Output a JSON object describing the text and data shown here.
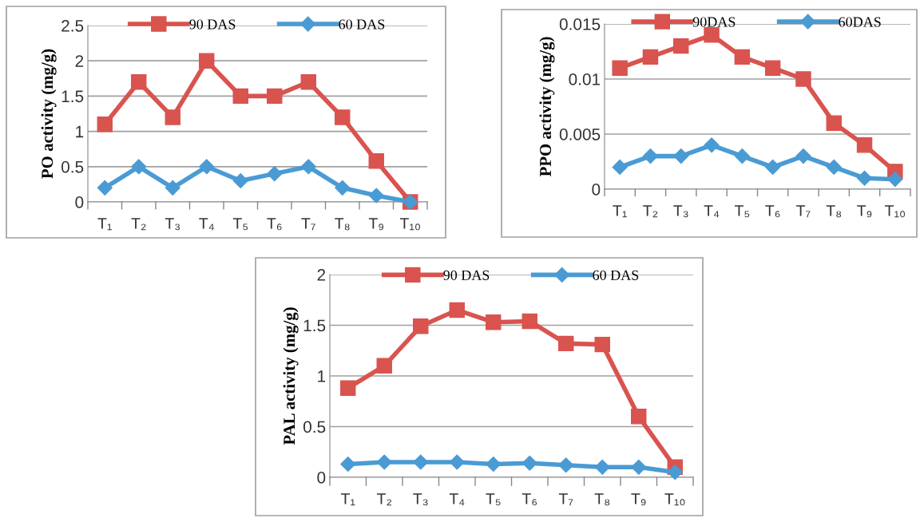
{
  "chart_data": [
    {
      "type": "line",
      "ylabel": "PO activity (mg/g)",
      "categories": [
        "T₁",
        "T₂",
        "T₃",
        "T₄",
        "T₅",
        "T₆",
        "T₇",
        "T₈",
        "T₉",
        "T₁₀"
      ],
      "series": [
        {
          "name": "90 DAS",
          "color": "#d9534f",
          "marker": "square",
          "values": [
            1.1,
            1.7,
            1.2,
            2.0,
            1.5,
            1.5,
            1.7,
            1.2,
            0.58,
            0.0
          ]
        },
        {
          "name": "60 DAS",
          "color": "#4a9bd4",
          "marker": "diamond",
          "values": [
            0.2,
            0.5,
            0.2,
            0.5,
            0.3,
            0.4,
            0.5,
            0.2,
            0.09,
            0.0
          ]
        }
      ],
      "ylim": [
        0,
        2.5
      ],
      "yticks": [
        0,
        0.5,
        1,
        1.5,
        2,
        2.5
      ],
      "grid": "y",
      "legend": "top"
    },
    {
      "type": "line",
      "ylabel": "PPO activity (mg/g)",
      "categories": [
        "T₁",
        "T₂",
        "T₃",
        "T₄",
        "T₅",
        "T₆",
        "T₇",
        "T₈",
        "T₉",
        "T₁₀"
      ],
      "series": [
        {
          "name": "90DAS",
          "color": "#d9534f",
          "marker": "square",
          "values": [
            0.011,
            0.012,
            0.013,
            0.014,
            0.012,
            0.011,
            0.01,
            0.006,
            0.004,
            0.0016
          ]
        },
        {
          "name": "60DAS",
          "color": "#4a9bd4",
          "marker": "diamond",
          "values": [
            0.002,
            0.003,
            0.003,
            0.004,
            0.003,
            0.002,
            0.003,
            0.002,
            0.001,
            0.0009
          ]
        }
      ],
      "ylim": [
        0,
        0.015
      ],
      "yticks": [
        0,
        0.005,
        0.01,
        0.015
      ],
      "grid": "y",
      "legend": "top"
    },
    {
      "type": "line",
      "ylabel": "PAL activity (mg/g)",
      "categories": [
        "T₁",
        "T₂",
        "T₃",
        "T₄",
        "T₅",
        "T₆",
        "T₇",
        "T₈",
        "T₉",
        "T₁₀"
      ],
      "series": [
        {
          "name": "90 DAS",
          "color": "#d9534f",
          "marker": "square",
          "values": [
            0.88,
            1.1,
            1.49,
            1.65,
            1.53,
            1.54,
            1.32,
            1.31,
            0.6,
            0.1
          ]
        },
        {
          "name": "60 DAS",
          "color": "#4a9bd4",
          "marker": "diamond",
          "values": [
            0.13,
            0.15,
            0.15,
            0.15,
            0.13,
            0.14,
            0.12,
            0.1,
            0.1,
            0.05
          ]
        }
      ],
      "ylim": [
        0,
        2
      ],
      "yticks": [
        0,
        0.5,
        1,
        1.5,
        2
      ],
      "grid": "y",
      "legend": "top"
    }
  ]
}
